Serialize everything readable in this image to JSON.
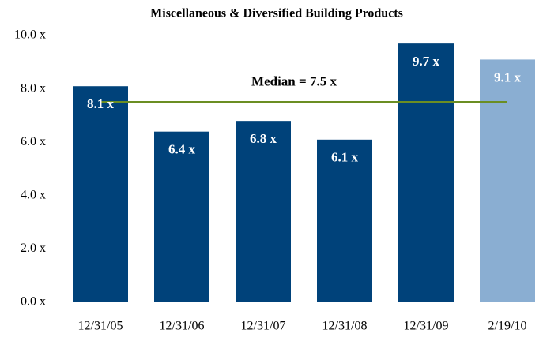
{
  "chart_data": {
    "type": "bar",
    "title": "Miscellaneous & Diversified Building Products",
    "categories": [
      "12/31/05",
      "12/31/06",
      "12/31/07",
      "12/31/08",
      "12/31/09",
      "2/19/10"
    ],
    "values": [
      8.1,
      6.4,
      6.8,
      6.1,
      9.7,
      9.1
    ],
    "value_labels": [
      "8.1 x",
      "6.4 x",
      "6.8 x",
      "6.1 x",
      "9.7 x",
      "9.1 x"
    ],
    "colors": [
      "#00427a",
      "#00427a",
      "#00427a",
      "#00427a",
      "#00427a",
      "#8aaed2"
    ],
    "ylim": [
      0,
      10
    ],
    "yticks": [
      {
        "value": 0,
        "label": "0.0 x"
      },
      {
        "value": 2,
        "label": "2.0 x"
      },
      {
        "value": 4,
        "label": "4.0 x"
      },
      {
        "value": 6,
        "label": "6.0 x"
      },
      {
        "value": 8,
        "label": "8.0 x"
      },
      {
        "value": 10,
        "label": "10.0 x"
      }
    ],
    "grid": false,
    "median": {
      "value": 7.5,
      "label": "Median = 7.5 x",
      "color": "#6b8e23"
    }
  }
}
